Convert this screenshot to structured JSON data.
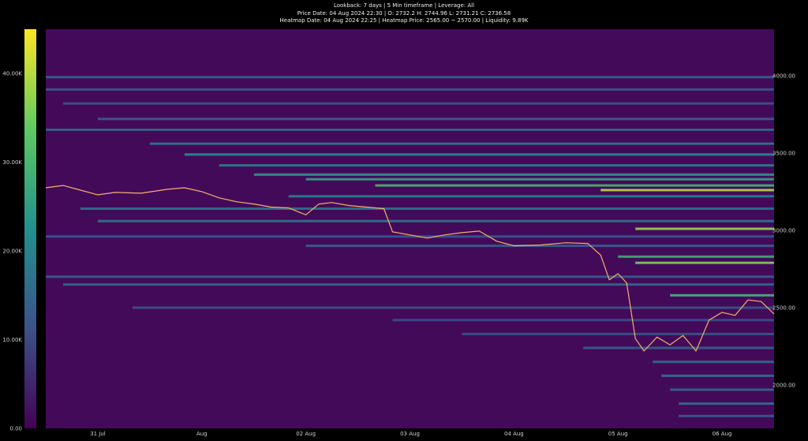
{
  "header": {
    "line1": "Lookback: 7 days | 5 Min timeframe | Leverage: All",
    "line2": "Price Date: 04 Aug 2024 22:30 | O: 2732.2 H: 2744.96 L: 2731.21 C: 2736.58",
    "line3": "Heatmap Date: 04 Aug 2024 22:25 | Heatmap Price: 2565.00 ~ 2570.00 | Liquidity: 9.89K"
  },
  "colors": {
    "background": "#000000",
    "heatmap_base": "#440a5a",
    "colorbar_stops": [
      "#440154",
      "#3b528b",
      "#21918c",
      "#5ec962",
      "#fde725"
    ],
    "price_line": "#f2b16a"
  },
  "chart_data": {
    "type": "heatmap",
    "title": "",
    "colorbar": {
      "min": 0,
      "max": 45000,
      "ticks": [
        {
          "value": 0,
          "label": "0.00"
        },
        {
          "value": 10000,
          "label": "10.00K"
        },
        {
          "value": 20000,
          "label": "20.00K"
        },
        {
          "value": 30000,
          "label": "30.00K"
        },
        {
          "value": 40000,
          "label": "40.00K"
        }
      ]
    },
    "x_axis": {
      "start": "2024-07-30T12:00",
      "end": "2024-08-06T12:00",
      "ticks": [
        {
          "date": "2024-07-31T00:00",
          "label": "31 Jul"
        },
        {
          "date": "2024-08-01T00:00",
          "label": "Aug"
        },
        {
          "date": "2024-08-02T00:00",
          "label": "02 Aug"
        },
        {
          "date": "2024-08-03T00:00",
          "label": "03 Aug"
        },
        {
          "date": "2024-08-04T00:00",
          "label": "04 Aug"
        },
        {
          "date": "2024-08-05T00:00",
          "label": "05 Aug"
        },
        {
          "date": "2024-08-06T00:00",
          "label": "06 Aug"
        }
      ]
    },
    "y_axis": {
      "min": 1720,
      "max": 4300,
      "ticks": [
        {
          "value": 2000,
          "label": "2000.00"
        },
        {
          "value": 2500,
          "label": "2500.00"
        },
        {
          "value": 3000,
          "label": "3000.00"
        },
        {
          "value": 3500,
          "label": "3500.00"
        },
        {
          "value": 4000,
          "label": "4000.00"
        }
      ]
    },
    "price_series": [
      {
        "date": "2024-07-30T12:00",
        "price": 3275
      },
      {
        "date": "2024-07-30T16:00",
        "price": 3290
      },
      {
        "date": "2024-07-30T20:00",
        "price": 3260
      },
      {
        "date": "2024-07-31T00:00",
        "price": 3230
      },
      {
        "date": "2024-07-31T04:00",
        "price": 3245
      },
      {
        "date": "2024-07-31T10:00",
        "price": 3240
      },
      {
        "date": "2024-07-31T16:00",
        "price": 3265
      },
      {
        "date": "2024-07-31T20:00",
        "price": 3275
      },
      {
        "date": "2024-08-01T00:00",
        "price": 3250
      },
      {
        "date": "2024-08-01T04:00",
        "price": 3210
      },
      {
        "date": "2024-08-01T08:00",
        "price": 3185
      },
      {
        "date": "2024-08-01T12:00",
        "price": 3170
      },
      {
        "date": "2024-08-01T16:00",
        "price": 3150
      },
      {
        "date": "2024-08-01T20:00",
        "price": 3145
      },
      {
        "date": "2024-08-02T00:00",
        "price": 3100
      },
      {
        "date": "2024-08-02T03:00",
        "price": 3170
      },
      {
        "date": "2024-08-02T06:00",
        "price": 3180
      },
      {
        "date": "2024-08-02T10:00",
        "price": 3160
      },
      {
        "date": "2024-08-02T14:00",
        "price": 3150
      },
      {
        "date": "2024-08-02T18:00",
        "price": 3140
      },
      {
        "date": "2024-08-02T20:00",
        "price": 2990
      },
      {
        "date": "2024-08-03T00:00",
        "price": 2970
      },
      {
        "date": "2024-08-03T04:00",
        "price": 2950
      },
      {
        "date": "2024-08-03T08:00",
        "price": 2970
      },
      {
        "date": "2024-08-03T12:00",
        "price": 2985
      },
      {
        "date": "2024-08-03T16:00",
        "price": 2995
      },
      {
        "date": "2024-08-03T20:00",
        "price": 2930
      },
      {
        "date": "2024-08-04T00:00",
        "price": 2900
      },
      {
        "date": "2024-08-04T06:00",
        "price": 2905
      },
      {
        "date": "2024-08-04T12:00",
        "price": 2920
      },
      {
        "date": "2024-08-04T17:00",
        "price": 2915
      },
      {
        "date": "2024-08-04T20:00",
        "price": 2840
      },
      {
        "date": "2024-08-04T22:00",
        "price": 2680
      },
      {
        "date": "2024-08-05T00:00",
        "price": 2720
      },
      {
        "date": "2024-08-05T02:00",
        "price": 2660
      },
      {
        "date": "2024-08-05T04:00",
        "price": 2300
      },
      {
        "date": "2024-08-05T06:00",
        "price": 2220
      },
      {
        "date": "2024-08-05T09:00",
        "price": 2310
      },
      {
        "date": "2024-08-05T12:00",
        "price": 2260
      },
      {
        "date": "2024-08-05T15:00",
        "price": 2320
      },
      {
        "date": "2024-08-05T18:00",
        "price": 2220
      },
      {
        "date": "2024-08-05T21:00",
        "price": 2420
      },
      {
        "date": "2024-08-06T00:00",
        "price": 2470
      },
      {
        "date": "2024-08-06T03:00",
        "price": 2450
      },
      {
        "date": "2024-08-06T06:00",
        "price": 2550
      },
      {
        "date": "2024-08-06T09:00",
        "price": 2540
      },
      {
        "date": "2024-08-06T12:00",
        "price": 2460
      }
    ],
    "liquidity_levels": [
      {
        "price": 3990,
        "from": "2024-07-30T12:00",
        "value": 14000
      },
      {
        "price": 3910,
        "from": "2024-07-30T12:00",
        "value": 12000
      },
      {
        "price": 3820,
        "from": "2024-07-30T16:00",
        "value": 12000
      },
      {
        "price": 3720,
        "from": "2024-07-31T00:00",
        "value": 13000
      },
      {
        "price": 3650,
        "from": "2024-07-30T12:00",
        "value": 15000
      },
      {
        "price": 3560,
        "from": "2024-07-31T12:00",
        "value": 18000
      },
      {
        "price": 3490,
        "from": "2024-07-31T20:00",
        "value": 22000
      },
      {
        "price": 3420,
        "from": "2024-08-01T04:00",
        "value": 20000
      },
      {
        "price": 3360,
        "from": "2024-08-01T12:00",
        "value": 24000
      },
      {
        "price": 3330,
        "from": "2024-08-02T00:00",
        "value": 26000
      },
      {
        "price": 3290,
        "from": "2024-08-02T16:00",
        "value": 30000
      },
      {
        "price": 3260,
        "from": "2024-08-04T20:00",
        "value": 40000
      },
      {
        "price": 3220,
        "from": "2024-08-01T20:00",
        "value": 20000
      },
      {
        "price": 3140,
        "from": "2024-07-30T20:00",
        "value": 17000
      },
      {
        "price": 3060,
        "from": "2024-07-31T00:00",
        "value": 18000
      },
      {
        "price": 3010,
        "from": "2024-08-05T04:00",
        "value": 38000
      },
      {
        "price": 2960,
        "from": "2024-07-30T12:00",
        "value": 12000
      },
      {
        "price": 2900,
        "from": "2024-08-02T00:00",
        "value": 14000
      },
      {
        "price": 2830,
        "from": "2024-08-05T00:00",
        "value": 28000
      },
      {
        "price": 2790,
        "from": "2024-08-05T04:00",
        "value": 36000
      },
      {
        "price": 2700,
        "from": "2024-07-30T12:00",
        "value": 13000
      },
      {
        "price": 2650,
        "from": "2024-07-30T16:00",
        "value": 15000
      },
      {
        "price": 2580,
        "from": "2024-08-05T12:00",
        "value": 30000
      },
      {
        "price": 2500,
        "from": "2024-07-31T08:00",
        "value": 12000
      },
      {
        "price": 2420,
        "from": "2024-08-02T20:00",
        "value": 11000
      },
      {
        "price": 2330,
        "from": "2024-08-03T12:00",
        "value": 12000
      },
      {
        "price": 2240,
        "from": "2024-08-04T16:00",
        "value": 14000
      },
      {
        "price": 2150,
        "from": "2024-08-05T08:00",
        "value": 16000
      },
      {
        "price": 2060,
        "from": "2024-08-05T10:00",
        "value": 17000
      },
      {
        "price": 1970,
        "from": "2024-08-05T12:00",
        "value": 15000
      },
      {
        "price": 1880,
        "from": "2024-08-05T14:00",
        "value": 17000
      },
      {
        "price": 1800,
        "from": "2024-08-05T14:00",
        "value": 13000
      }
    ]
  }
}
